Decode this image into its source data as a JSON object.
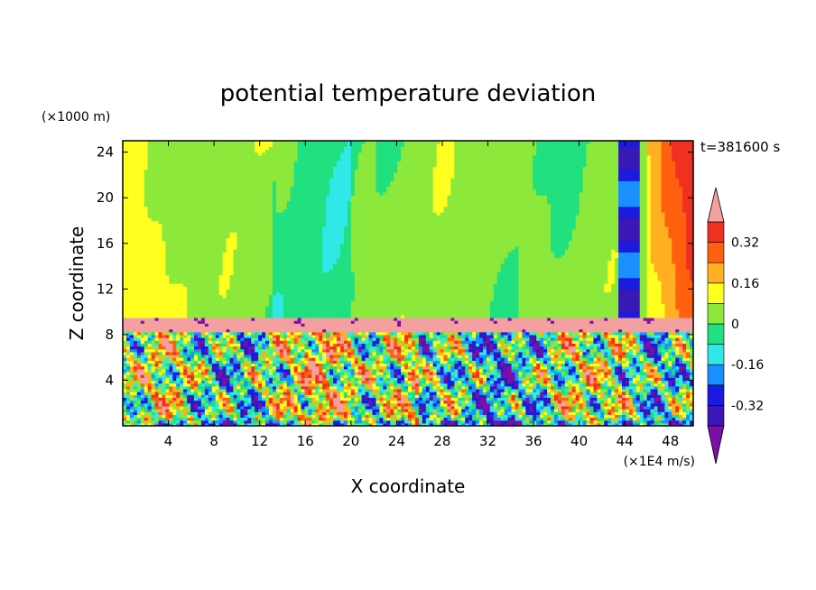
{
  "chart_data": {
    "type": "heatmap",
    "title": "potential temperature deviation",
    "xlabel": "X coordinate",
    "ylabel": "Z coordinate",
    "x_unit": "(×1E4 m/s)",
    "y_unit": "(×1000 m)",
    "time_label": "t=381600 s",
    "xlim": [
      0,
      50
    ],
    "ylim": [
      0,
      25
    ],
    "x_ticks": [
      4,
      8,
      12,
      16,
      20,
      24,
      28,
      32,
      36,
      40,
      44,
      48
    ],
    "y_ticks": [
      4,
      8,
      12,
      16,
      20,
      24
    ],
    "colorbar": {
      "levels": [
        -0.4,
        -0.32,
        -0.24,
        -0.16,
        -0.08,
        0,
        0.08,
        0.16,
        0.24,
        0.32,
        0.4
      ],
      "labels": [
        "0.32",
        "0.16",
        "0",
        "-0.16",
        "-0.32"
      ],
      "label_values": [
        0.32,
        0.16,
        0,
        -0.16,
        -0.32
      ],
      "colors": [
        "#7a10a8",
        "#3a18b8",
        "#1a1ae0",
        "#1890ff",
        "#30e8e8",
        "#20e080",
        "#8ce83a",
        "#ffff20",
        "#ffb020",
        "#ff6010",
        "#f03020",
        "#f4a0a0"
      ]
    },
    "field_description_layers": [
      {
        "zrange": [
          9.5,
          25
        ],
        "dominant": [
          0,
          0.08
        ]
      },
      {
        "zrange": [
          8,
          9.5
        ],
        "dominant": [
          0.4
        ]
      },
      {
        "zrange": [
          0,
          8
        ],
        "dominant": "mixed"
      }
    ]
  }
}
